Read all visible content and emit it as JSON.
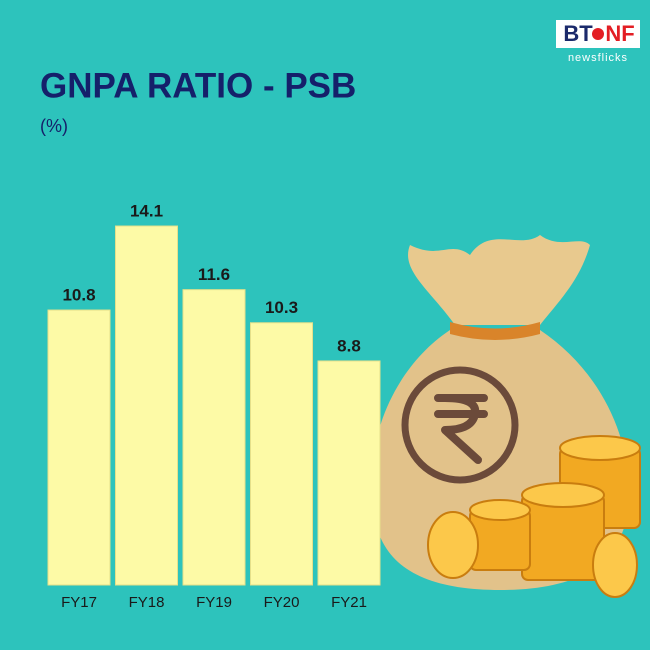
{
  "chart_data": {
    "type": "bar",
    "title": "GNPA RATIO - PSB",
    "subtitle": "(%)",
    "categories": [
      "FY17",
      "FY18",
      "FY19",
      "FY20",
      "FY21"
    ],
    "values": [
      10.8,
      14.1,
      11.6,
      10.3,
      8.8
    ],
    "color": "#fdfaa6"
  },
  "logo": {
    "left": "BT",
    "right": "NF",
    "tagline": "newsflicks"
  }
}
